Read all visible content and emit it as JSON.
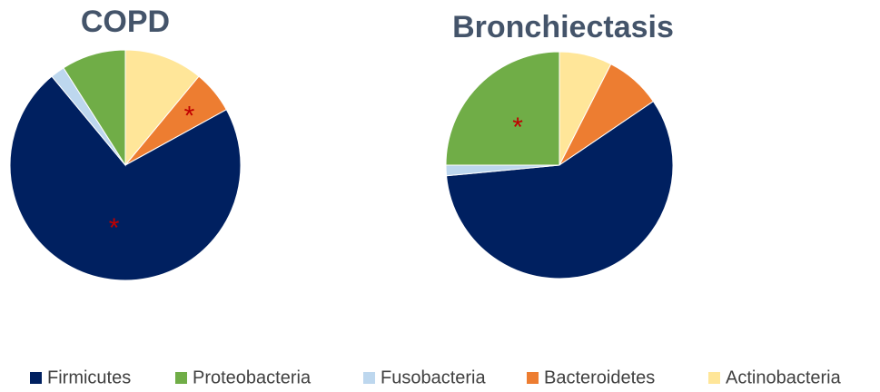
{
  "chart_data": [
    {
      "type": "pie",
      "title": "COPD",
      "categories": [
        "Firmicutes",
        "Proteobacteria",
        "Fusobacteria",
        "Bacteroidetes",
        "Actinobacteria"
      ],
      "values": [
        72,
        9,
        2,
        6,
        11
      ],
      "colors": [
        "#002060",
        "#70ad47",
        "#bdd7ee",
        "#ed7d31",
        "#ffe699"
      ],
      "annotations": [
        {
          "text": "*",
          "category": "Firmicutes"
        },
        {
          "text": "*",
          "category": "Bacteroidetes"
        }
      ]
    },
    {
      "type": "pie",
      "title": "Bronchiectasis",
      "categories": [
        "Firmicutes",
        "Proteobacteria",
        "Fusobacteria",
        "Bacteroidetes",
        "Actinobacteria"
      ],
      "values": [
        58,
        25,
        1.5,
        8,
        7.5
      ],
      "colors": [
        "#002060",
        "#70ad47",
        "#bdd7ee",
        "#ed7d31",
        "#ffe699"
      ],
      "annotations": [
        {
          "text": "*",
          "category": "Proteobacteria"
        }
      ]
    }
  ]
}
